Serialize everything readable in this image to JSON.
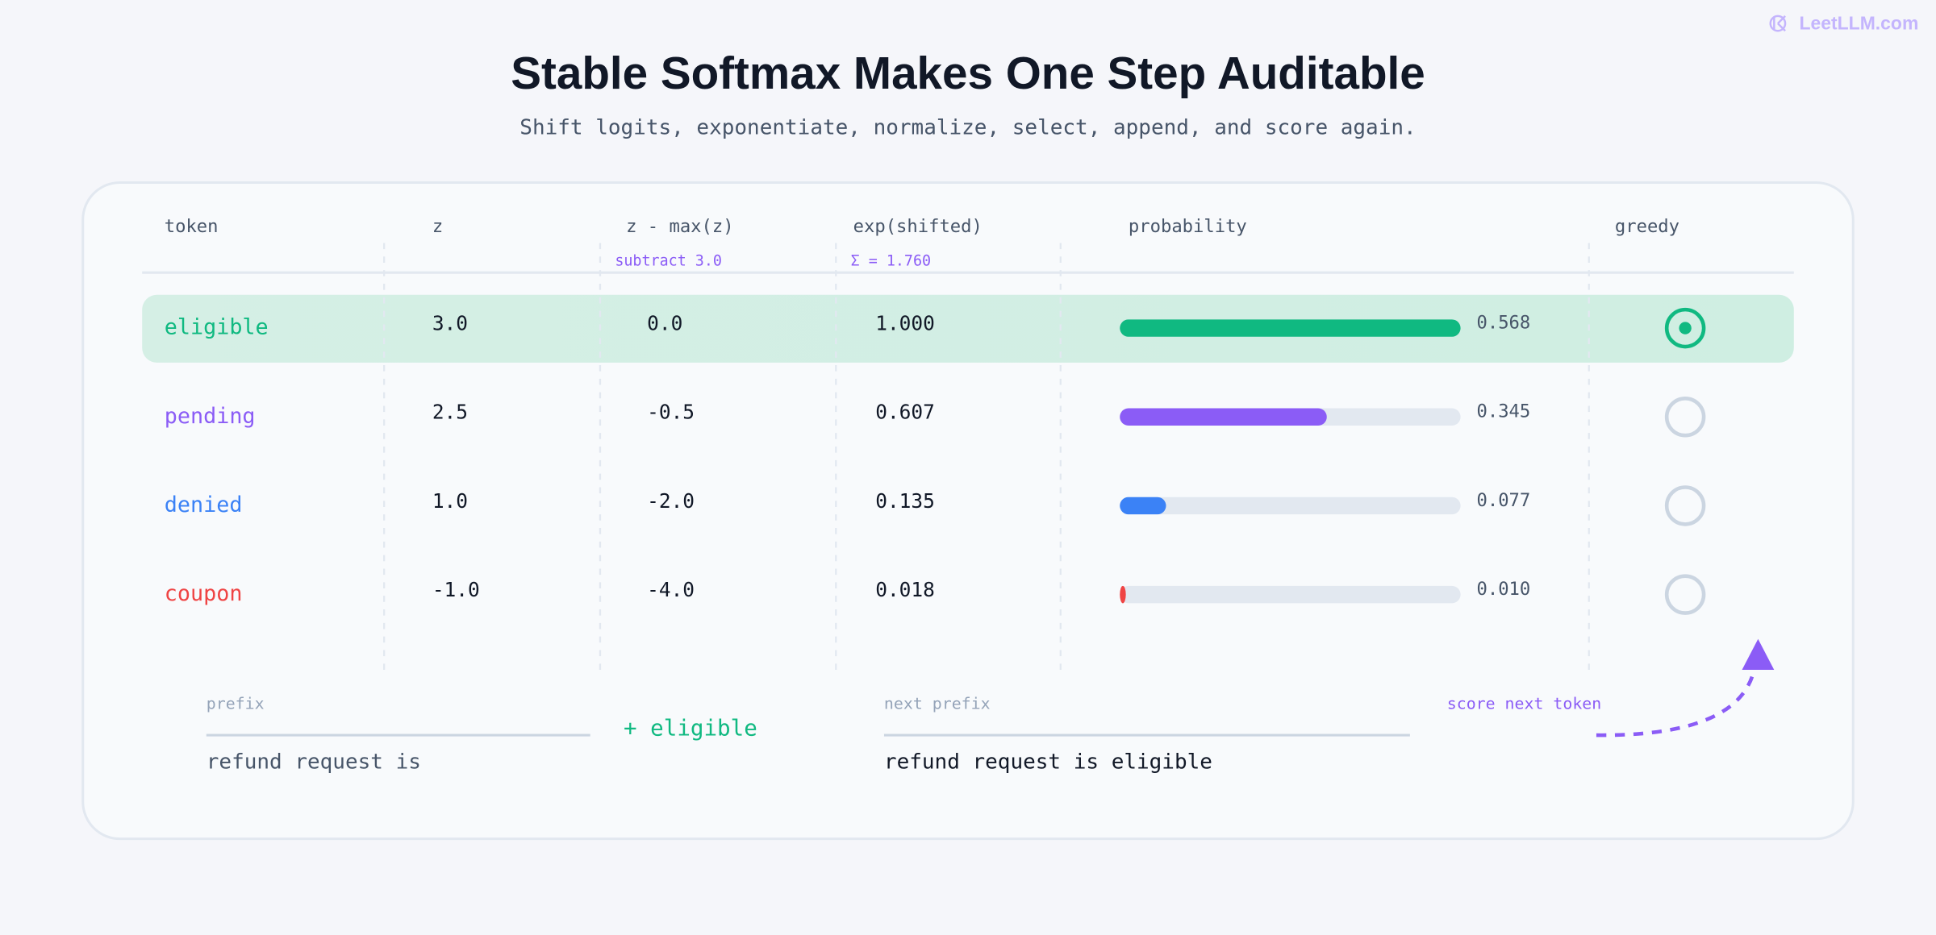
{
  "watermark": "LeetLLM.com",
  "header": {
    "title": "Stable Softmax Makes One Step Auditable",
    "subtitle": "Shift logits, exponentiate, normalize, select, append, and score again."
  },
  "table": {
    "columns": [
      "token",
      "z",
      "z - max(z)",
      "exp(shifted)",
      "probability",
      "greedy"
    ],
    "notes": {
      "shift": "subtract 3.0",
      "sum": "Σ = 1.760"
    },
    "rows": [
      {
        "token": "eligible",
        "color": "#10b981",
        "z": "3.0",
        "shifted": "0.0",
        "exp": "1.000",
        "probability": {
          "value": 0.568,
          "label": "0.568"
        },
        "greedy": true
      },
      {
        "token": "pending",
        "color": "#8b5cf6",
        "z": "2.5",
        "shifted": "-0.5",
        "exp": "0.607",
        "probability": {
          "value": 0.345,
          "label": "0.345"
        },
        "greedy": false
      },
      {
        "token": "denied",
        "color": "#3b82f6",
        "z": "1.0",
        "shifted": "-2.0",
        "exp": "0.135",
        "probability": {
          "value": 0.077,
          "label": "0.077"
        },
        "greedy": false
      },
      {
        "token": "coupon",
        "color": "#ef4444",
        "z": "-1.0",
        "shifted": "-4.0",
        "exp": "0.018",
        "probability": {
          "value": 0.01,
          "label": "0.010"
        },
        "greedy": false
      }
    ]
  },
  "footer": {
    "prefix_label": "prefix",
    "prefix": "refund request is",
    "append": "+ eligible",
    "next_label": "next prefix",
    "next_prefix": "refund request is eligible",
    "action": "score next token"
  }
}
